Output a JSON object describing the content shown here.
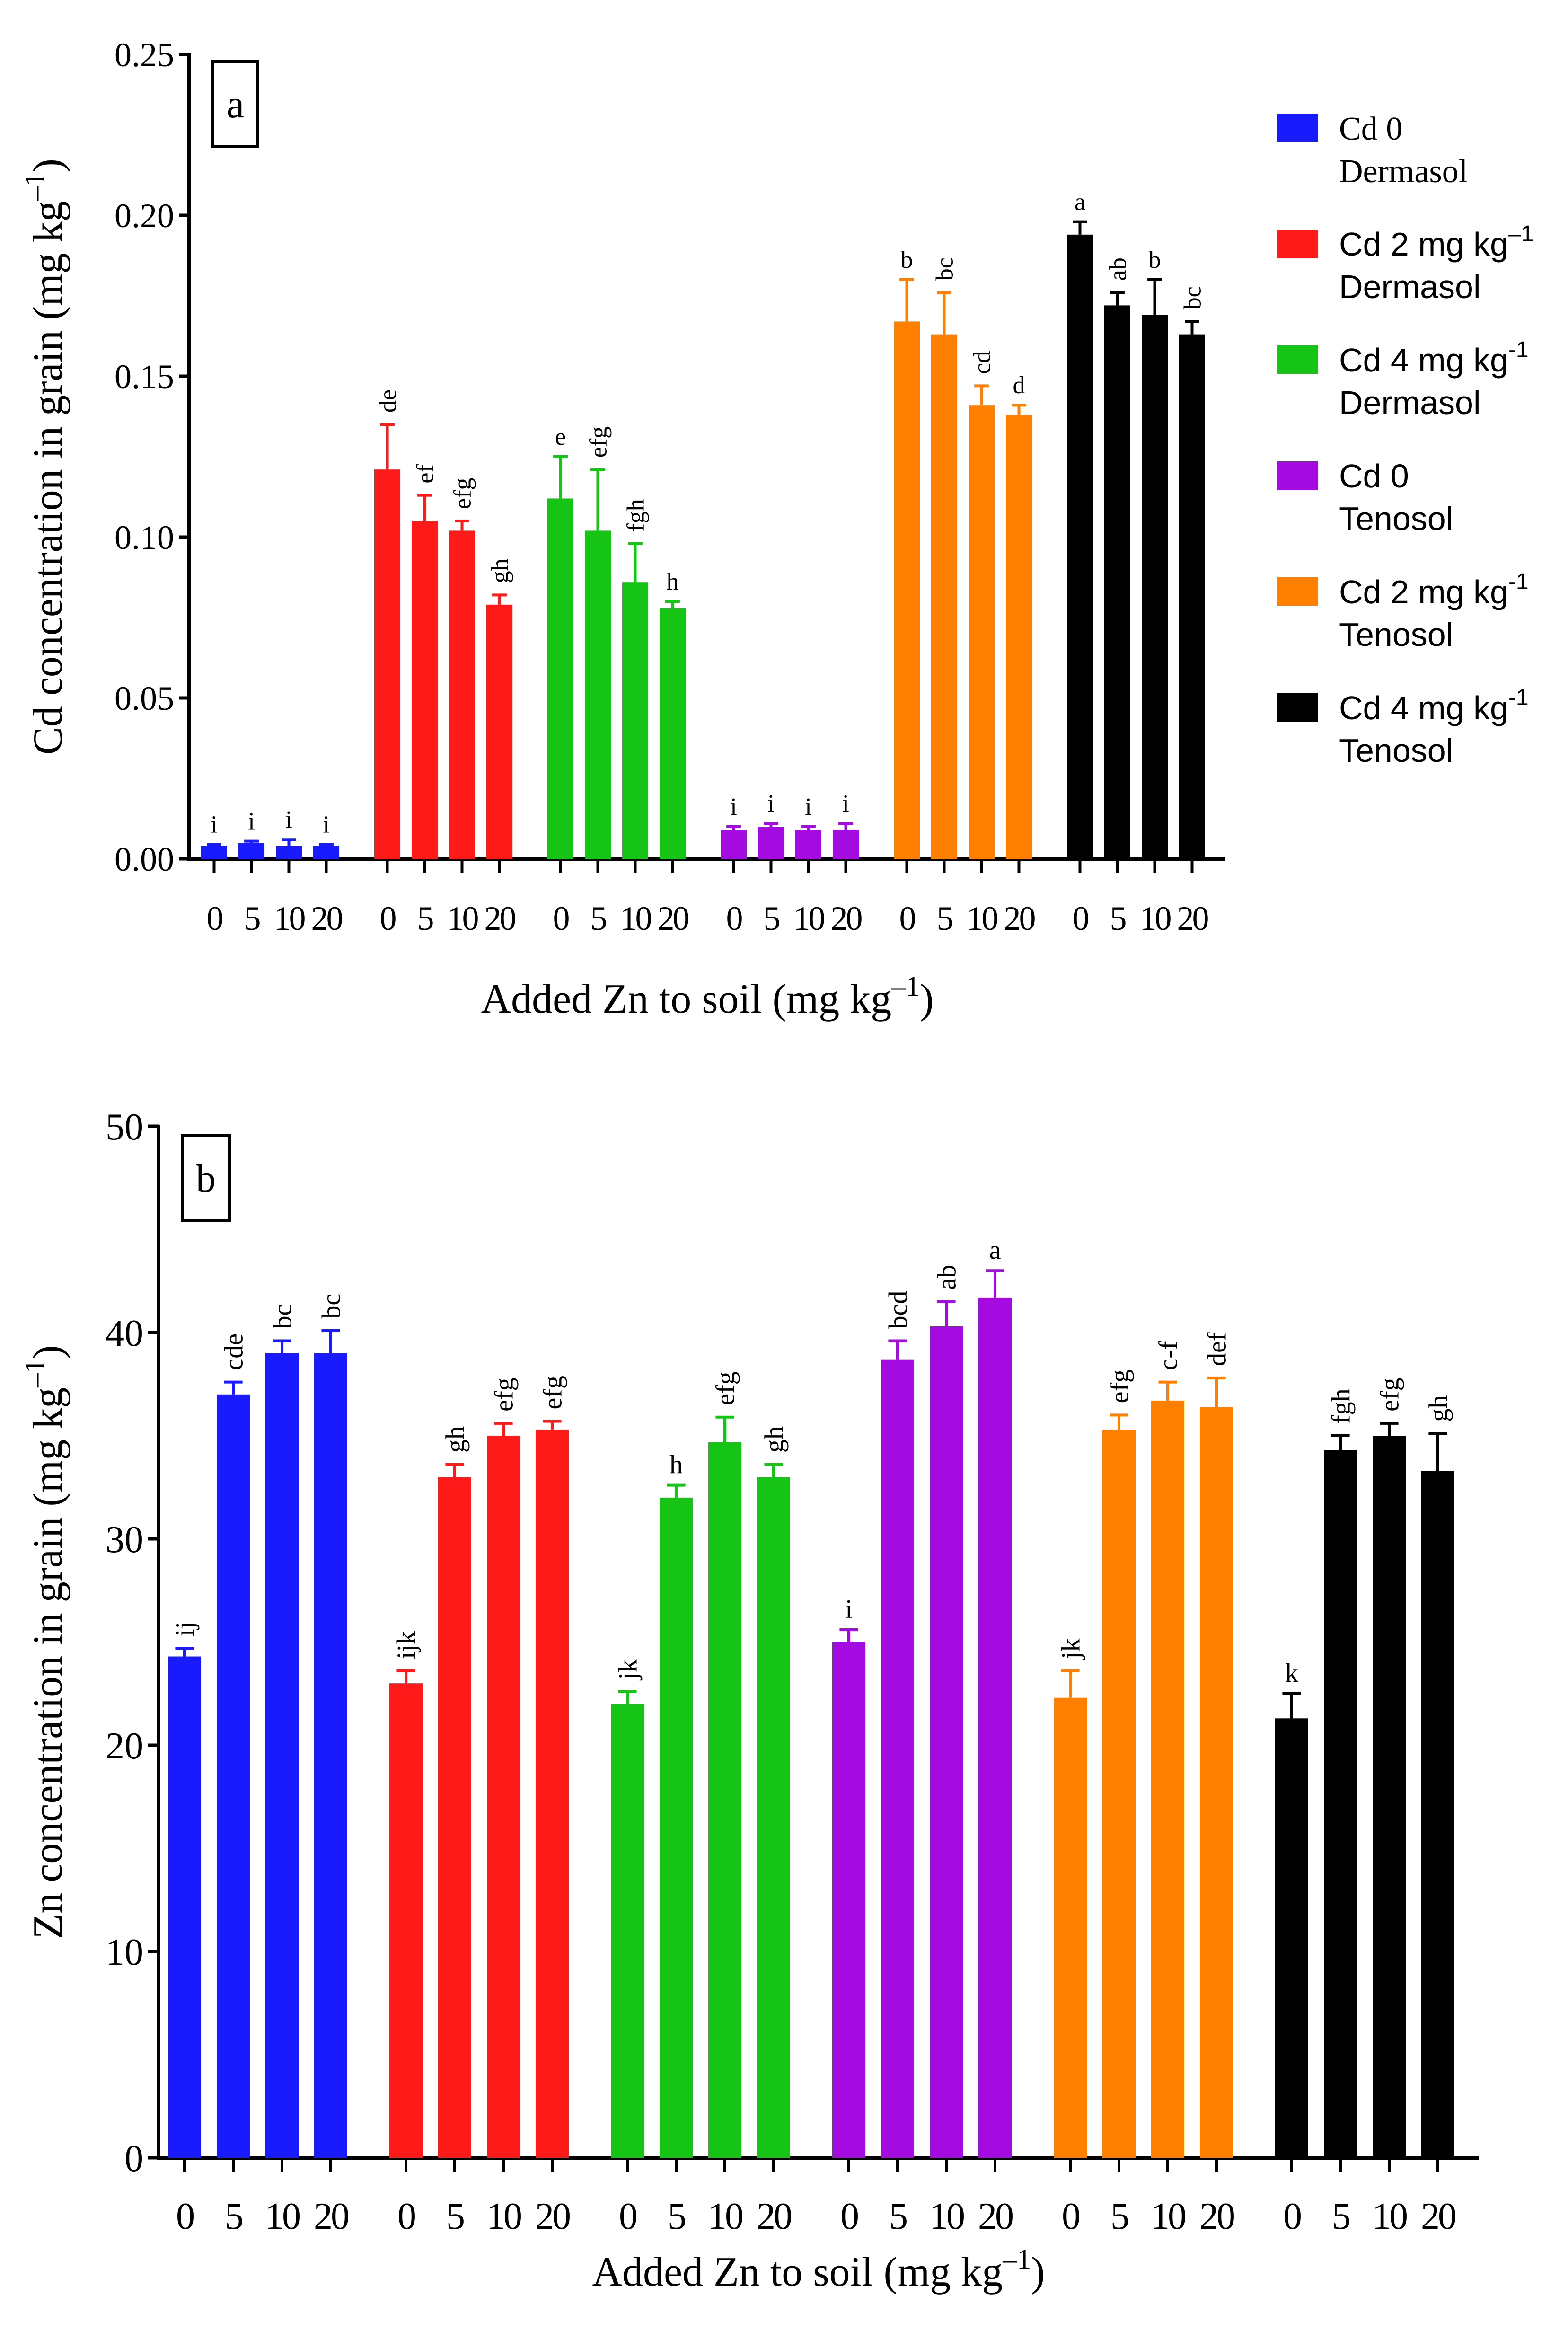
{
  "legend": {
    "entries": [
      {
        "line1": "Cd 0",
        "line2": "Dermasol",
        "color": "#1a1aff"
      },
      {
        "line1": "Cd 2 mg kg",
        "sup": "–1",
        "line2": "Dermasol",
        "color": "#ff1a1a"
      },
      {
        "line1": "Cd 4 mg kg",
        "sup": "-1",
        "line2": "Dermasol",
        "color": "#16c416"
      },
      {
        "line1": "Cd 0",
        "line2": "Tenosol",
        "color": "#a30be0"
      },
      {
        "line1": "Cd 2 mg kg",
        "sup": "-1",
        "line2": "Tenosol",
        "color": "#ff8000"
      },
      {
        "line1": "Cd 4 mg kg",
        "sup": "-1",
        "line2": "Tenosol",
        "color": "#000000"
      }
    ]
  },
  "chart_data": [
    {
      "type": "bar",
      "panel_label": "a",
      "title": "",
      "xlabel": "Added Zn to soil (mg kg",
      "xlabel_sup": "–1",
      "xlabel_end": ")",
      "ylabel": "Cd concentration in grain (mg kg",
      "ylabel_sup": "–1",
      "ylabel_end": ")",
      "ylim": [
        0,
        0.25
      ],
      "yticks": [
        "0.00",
        "0.05",
        "0.10",
        "0.15",
        "0.20",
        "0.25"
      ],
      "ytick_values": [
        0,
        0.05,
        0.1,
        0.15,
        0.2,
        0.25
      ],
      "categories": [
        "0",
        "5",
        "10",
        "20"
      ],
      "series": [
        {
          "name": "Cd 0 Dermasol",
          "color": "#1a1aff",
          "values": [
            0.004,
            0.005,
            0.004,
            0.004
          ],
          "errors": [
            0.0005,
            0.0005,
            0.002,
            0.0005
          ],
          "letters": [
            "i",
            "i",
            "i",
            "i"
          ]
        },
        {
          "name": "Cd 2 mg kg-1 Dermasol",
          "color": "#ff1a1a",
          "values": [
            0.121,
            0.105,
            0.102,
            0.079
          ],
          "errors": [
            0.014,
            0.008,
            0.003,
            0.003
          ],
          "letters": [
            "de",
            "ef",
            "efg",
            "gh"
          ]
        },
        {
          "name": "Cd 4 mg kg-1 Dermasol",
          "color": "#16c416",
          "values": [
            0.112,
            0.102,
            0.086,
            0.078
          ],
          "errors": [
            0.013,
            0.019,
            0.012,
            0.002
          ],
          "letters": [
            "e",
            "efg",
            "fgh",
            "h"
          ]
        },
        {
          "name": "Cd 0 Tenosol",
          "color": "#a30be0",
          "values": [
            0.009,
            0.01,
            0.009,
            0.009
          ],
          "errors": [
            0.001,
            0.001,
            0.001,
            0.002
          ],
          "letters": [
            "i",
            "i",
            "i",
            "i"
          ]
        },
        {
          "name": "Cd 2 mg kg-1 Tenosol",
          "color": "#ff8000",
          "values": [
            0.167,
            0.163,
            0.141,
            0.138
          ],
          "errors": [
            0.013,
            0.013,
            0.006,
            0.003
          ],
          "letters": [
            "b",
            "bc",
            "cd",
            "d"
          ]
        },
        {
          "name": "Cd 4 mg kg-1 Tenosol",
          "color": "#000000",
          "values": [
            0.194,
            0.172,
            0.169,
            0.163
          ],
          "errors": [
            0.004,
            0.004,
            0.011,
            0.004
          ],
          "letters": [
            "a",
            "ab",
            "b",
            "bc"
          ]
        }
      ]
    },
    {
      "type": "bar",
      "panel_label": "b",
      "title": "",
      "xlabel": "Added Zn to soil (mg kg",
      "xlabel_sup": "–1",
      "xlabel_end": ")",
      "ylabel": "Zn concentration in grain (mg kg",
      "ylabel_sup": "–1",
      "ylabel_end": ")",
      "ylim": [
        0,
        50
      ],
      "yticks": [
        "0",
        "10",
        "20",
        "30",
        "40",
        "50"
      ],
      "ytick_values": [
        0,
        10,
        20,
        30,
        40,
        50
      ],
      "categories": [
        "0",
        "5",
        "10",
        "20"
      ],
      "series": [
        {
          "name": "Cd 0 Dermasol",
          "color": "#1a1aff",
          "values": [
            24.3,
            37.0,
            39.0,
            39.0
          ],
          "errors": [
            0.4,
            0.6,
            0.6,
            1.1
          ],
          "letters": [
            "ij",
            "cde",
            "bc",
            "bc"
          ]
        },
        {
          "name": "Cd 2 mg kg-1 Dermasol",
          "color": "#ff1a1a",
          "values": [
            23.0,
            33.0,
            35.0,
            35.3
          ],
          "errors": [
            0.6,
            0.6,
            0.6,
            0.4
          ],
          "letters": [
            "ijk",
            "gh",
            "efg",
            "efg"
          ]
        },
        {
          "name": "Cd 4 mg kg-1 Dermasol",
          "color": "#16c416",
          "values": [
            22.0,
            32.0,
            34.7,
            33.0
          ],
          "errors": [
            0.6,
            0.6,
            1.2,
            0.6
          ],
          "letters": [
            "jk",
            "h",
            "efg",
            "gh"
          ]
        },
        {
          "name": "Cd 0 Tenosol",
          "color": "#a30be0",
          "values": [
            25.0,
            38.7,
            40.3,
            41.7
          ],
          "errors": [
            0.6,
            0.9,
            1.2,
            1.3
          ],
          "letters": [
            "i",
            "bcd",
            "ab",
            "a"
          ]
        },
        {
          "name": "Cd 2 mg kg-1 Tenosol",
          "color": "#ff8000",
          "values": [
            22.3,
            35.3,
            36.7,
            36.4
          ],
          "errors": [
            1.3,
            0.7,
            0.9,
            1.4
          ],
          "letters": [
            "jk",
            "efg",
            "c-f",
            "def"
          ]
        },
        {
          "name": "Cd 4 mg kg-1 Tenosol",
          "color": "#000000",
          "values": [
            21.3,
            34.3,
            35.0,
            33.3
          ],
          "errors": [
            1.2,
            0.7,
            0.6,
            1.8
          ],
          "letters": [
            "k",
            "fgh",
            "efg",
            "gh"
          ]
        }
      ]
    }
  ]
}
